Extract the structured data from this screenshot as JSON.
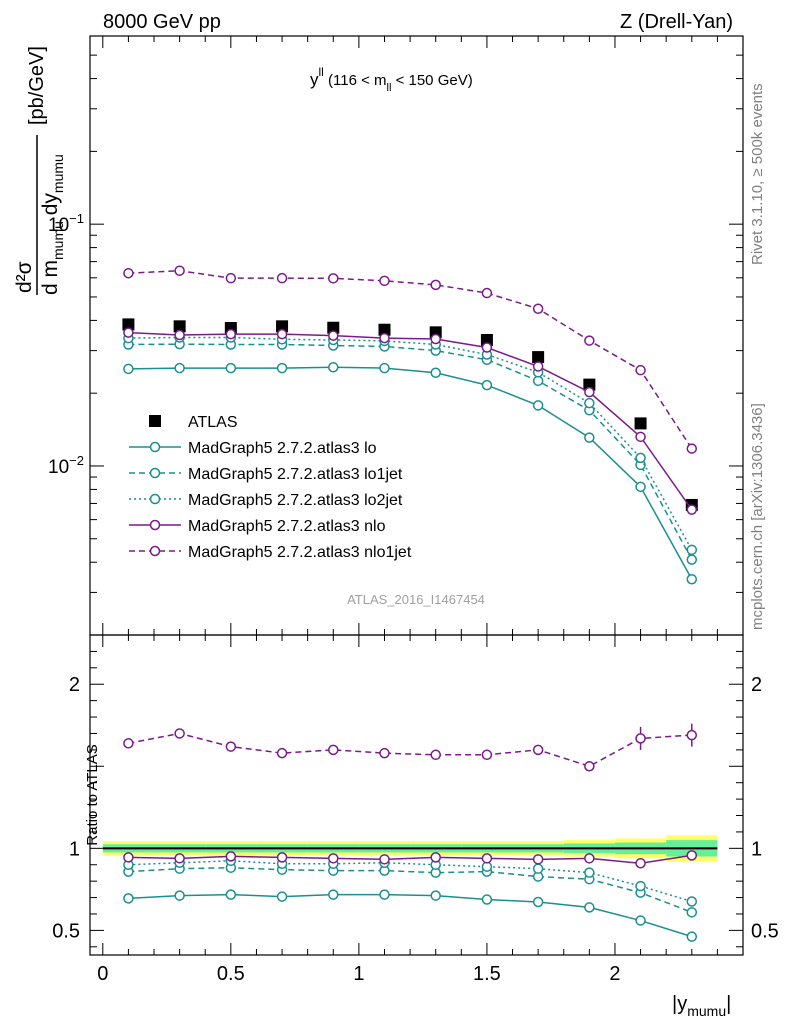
{
  "header": {
    "left": "8000 GeV pp",
    "right": "Z (Drell-Yan)"
  },
  "side": {
    "rivet": "Rivet 3.1.10, ≥ 500k events",
    "mcplots": "mcplots.cern.ch [arXiv:1306.3436]"
  },
  "main_title": {
    "y": "y",
    "ll_sup": "ll",
    "mid": " (116 < m",
    "ll_sub": "ll",
    "end": " < 150 GeV)"
  },
  "ylabel": {
    "numer": "d²σ",
    "denom_d": "d m",
    "denom_sub1": "mumu",
    "denom_dy": " dy",
    "denom_sub2": "mumu",
    "units": "[pb/GeV]"
  },
  "xlabel": {
    "text": "|y",
    "sub": "mumu",
    "close": "|"
  },
  "watermark": "ATLAS_2016_I1467454",
  "ratio_ylabel": "Ratio to ATLAS",
  "colors": {
    "atlas": "#000000",
    "lo": "#1a8f8f",
    "nlo": "#7a1a8c",
    "band_inner": "#66ee99",
    "band_outer": "#ffff66"
  },
  "chart_data": {
    "type": "line",
    "x": [
      0.1,
      0.3,
      0.5,
      0.7,
      0.9,
      1.1,
      1.3,
      1.5,
      1.7,
      1.9,
      2.1,
      2.3
    ],
    "xlim": [
      -0.05,
      2.5
    ],
    "ylim": [
      0.002,
      0.6
    ],
    "yscale": "log",
    "x_ticks": [
      "0",
      "0.5",
      "1",
      "1.5",
      "2"
    ],
    "x_tick_values": [
      0,
      0.5,
      1,
      1.5,
      2
    ],
    "y_tick_labels": [
      "10−2",
      "10−1"
    ],
    "y_tick_values": [
      0.01,
      0.1
    ],
    "series": [
      {
        "name": "ATLAS",
        "key": "atlas",
        "style": "square",
        "values": [
          0.0385,
          0.0378,
          0.0372,
          0.0378,
          0.0373,
          0.0366,
          0.0357,
          0.0332,
          0.0282,
          0.0217,
          0.015,
          0.0069
        ]
      },
      {
        "name": "MadGraph5 2.7.2.atlas3 lo",
        "key": "lo",
        "style": "solid",
        "values": [
          0.0252,
          0.0254,
          0.0254,
          0.0254,
          0.0256,
          0.0254,
          0.0243,
          0.0216,
          0.0178,
          0.0131,
          0.0082,
          0.0034
        ]
      },
      {
        "name": "MadGraph5 2.7.2.atlas3 lo1jet",
        "key": "lo1jet",
        "style": "dashed",
        "values": [
          0.0318,
          0.0319,
          0.0318,
          0.0318,
          0.0315,
          0.0312,
          0.03,
          0.0275,
          0.0225,
          0.017,
          0.0101,
          0.0041
        ]
      },
      {
        "name": "MadGraph5 2.7.2.atlas3 lo2jet",
        "key": "lo2jet",
        "style": "dotted",
        "values": [
          0.0338,
          0.034,
          0.034,
          0.0334,
          0.0332,
          0.0329,
          0.0318,
          0.0289,
          0.0244,
          0.0182,
          0.0108,
          0.0045
        ]
      },
      {
        "name": "MadGraph5 2.7.2.atlas3 nlo",
        "key": "nlo",
        "style": "solid",
        "values": [
          0.0356,
          0.0348,
          0.0351,
          0.0351,
          0.0346,
          0.0338,
          0.0335,
          0.0309,
          0.0258,
          0.0202,
          0.0132,
          0.0066
        ]
      },
      {
        "name": "MadGraph5 2.7.2.atlas3 nlo1jet",
        "key": "nlo1jet",
        "style": "dashed",
        "values": [
          0.0627,
          0.0642,
          0.0598,
          0.0598,
          0.0597,
          0.0583,
          0.0561,
          0.0519,
          0.0447,
          0.033,
          0.0249,
          0.0118
        ]
      }
    ],
    "ratio": {
      "ylabel": "Ratio to ATLAS",
      "ylim": [
        0.35,
        2.3
      ],
      "y_ticks": [
        "0.5",
        "1",
        "2"
      ],
      "y_tick_values": [
        0.5,
        1,
        2
      ],
      "band_inner": [
        0.025,
        0.025,
        0.025,
        0.025,
        0.025,
        0.025,
        0.025,
        0.025,
        0.025,
        0.03,
        0.035,
        0.05
      ],
      "band_outer": [
        0.045,
        0.045,
        0.045,
        0.045,
        0.045,
        0.045,
        0.045,
        0.045,
        0.045,
        0.05,
        0.06,
        0.08
      ],
      "series": [
        {
          "key": "lo",
          "values": [
            0.695,
            0.712,
            0.718,
            0.706,
            0.718,
            0.718,
            0.712,
            0.688,
            0.673,
            0.64,
            0.56,
            0.462
          ]
        },
        {
          "key": "lo1jet",
          "values": [
            0.858,
            0.876,
            0.882,
            0.87,
            0.864,
            0.864,
            0.852,
            0.858,
            0.828,
            0.812,
            0.73,
            0.61
          ]
        },
        {
          "key": "lo2jet",
          "values": [
            0.9,
            0.912,
            0.924,
            0.906,
            0.906,
            0.912,
            0.9,
            0.888,
            0.876,
            0.852,
            0.77,
            0.676
          ]
        },
        {
          "key": "nlo",
          "values": [
            0.945,
            0.939,
            0.951,
            0.945,
            0.939,
            0.933,
            0.945,
            0.939,
            0.933,
            0.939,
            0.909,
            0.957
          ]
        },
        {
          "key": "nlo1jet",
          "values": [
            1.64,
            1.7,
            1.62,
            1.58,
            1.6,
            1.58,
            1.57,
            1.57,
            1.6,
            1.5,
            1.67,
            1.69
          ]
        }
      ]
    }
  }
}
